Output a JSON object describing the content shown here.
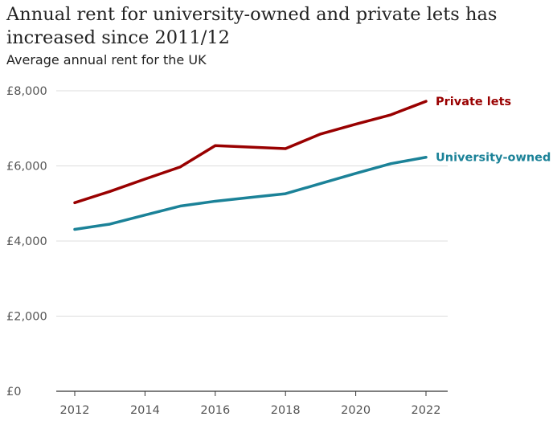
{
  "chart_data": {
    "type": "line",
    "title": "Annual rent for university-owned and private lets has increased since 2011/12",
    "subtitle": "Average annual rent for the UK",
    "xlabel": "",
    "ylabel": "",
    "x": [
      2012,
      2013,
      2014,
      2015,
      2016,
      2017,
      2018,
      2019,
      2020,
      2021,
      2022
    ],
    "xlim": [
      2012,
      2022
    ],
    "ylim": [
      0,
      8000
    ],
    "x_ticks": [
      {
        "value": 2012,
        "label": "2012"
      },
      {
        "value": 2014,
        "label": "2014"
      },
      {
        "value": 2016,
        "label": "2016"
      },
      {
        "value": 2018,
        "label": "2018"
      },
      {
        "value": 2020,
        "label": "2020"
      },
      {
        "value": 2022,
        "label": "2022"
      }
    ],
    "y_ticks": [
      {
        "value": 0,
        "label": "£0"
      },
      {
        "value": 2000,
        "label": "£2,000"
      },
      {
        "value": 4000,
        "label": "£4,000"
      },
      {
        "value": 6000,
        "label": "£6,000"
      },
      {
        "value": 8000,
        "label": "£8,000"
      }
    ],
    "grid": true,
    "series": [
      {
        "name": "Private lets",
        "key": "private-lets",
        "color": "#990000",
        "values": [
          5020,
          5320,
          5650,
          5970,
          6540,
          6500,
          6460,
          6850,
          7110,
          7360,
          7720
        ]
      },
      {
        "name": "University-owned",
        "key": "university-owned",
        "color": "#1B8298",
        "values": [
          4310,
          4450,
          4690,
          4930,
          5060,
          5160,
          5260,
          5530,
          5800,
          6060,
          6230
        ]
      }
    ]
  }
}
